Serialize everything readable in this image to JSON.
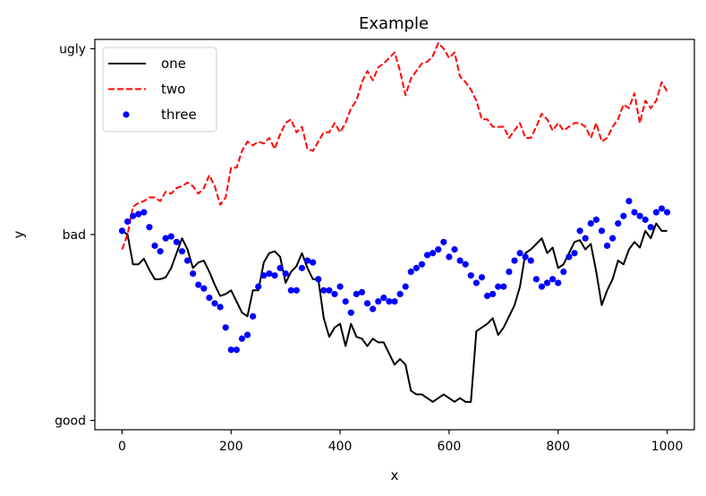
{
  "chart_data": {
    "type": "line",
    "title": "Example",
    "xlabel": "x",
    "ylabel": "y",
    "xlim": [
      -50,
      1050
    ],
    "ylim": [
      -0.05,
      2.05
    ],
    "x_ticks": [
      0,
      200,
      400,
      600,
      800,
      1000
    ],
    "y_categories": [
      "good",
      "bad",
      "ugly"
    ],
    "grid": false,
    "legend_position": "top-left",
    "series": [
      {
        "name": "one",
        "color": "#000000",
        "style": "solid",
        "x": [
          0,
          10,
          20,
          30,
          40,
          50,
          60,
          70,
          80,
          90,
          100,
          110,
          120,
          130,
          140,
          150,
          160,
          170,
          180,
          190,
          200,
          210,
          220,
          230,
          240,
          250,
          260,
          270,
          280,
          290,
          300,
          310,
          320,
          330,
          340,
          350,
          360,
          370,
          380,
          390,
          400,
          410,
          420,
          430,
          440,
          450,
          460,
          470,
          480,
          490,
          500,
          510,
          520,
          530,
          540,
          550,
          560,
          570,
          580,
          590,
          600,
          610,
          620,
          630,
          640,
          650,
          660,
          670,
          680,
          690,
          700,
          710,
          720,
          730,
          740,
          750,
          760,
          770,
          780,
          790,
          800,
          810,
          820,
          830,
          840,
          850,
          860,
          870,
          880,
          890,
          900,
          910,
          920,
          930,
          940,
          950,
          960,
          970,
          980,
          990,
          1000
        ],
        "y": [
          1.02,
          1.0,
          0.84,
          0.84,
          0.87,
          0.81,
          0.76,
          0.76,
          0.77,
          0.82,
          0.9,
          0.98,
          0.92,
          0.82,
          0.85,
          0.86,
          0.8,
          0.73,
          0.67,
          0.68,
          0.7,
          0.64,
          0.58,
          0.56,
          0.7,
          0.7,
          0.85,
          0.9,
          0.91,
          0.88,
          0.74,
          0.8,
          0.83,
          0.9,
          0.82,
          0.76,
          0.76,
          0.55,
          0.45,
          0.5,
          0.52,
          0.4,
          0.52,
          0.45,
          0.44,
          0.4,
          0.44,
          0.42,
          0.42,
          0.36,
          0.3,
          0.33,
          0.3,
          0.16,
          0.14,
          0.14,
          0.12,
          0.1,
          0.12,
          0.14,
          0.12,
          0.1,
          0.12,
          0.1,
          0.1,
          0.48,
          0.5,
          0.52,
          0.55,
          0.46,
          0.5,
          0.56,
          0.62,
          0.72,
          0.9,
          0.92,
          0.95,
          0.98,
          0.9,
          0.93,
          0.82,
          0.84,
          0.9,
          0.96,
          0.97,
          0.92,
          0.95,
          0.8,
          0.62,
          0.7,
          0.76,
          0.86,
          0.84,
          0.92,
          0.96,
          0.93,
          1.02,
          0.98,
          1.06,
          1.02,
          1.02
        ]
      },
      {
        "name": "two",
        "color": "#ff0000",
        "style": "dashed",
        "x": [
          0,
          10,
          20,
          30,
          40,
          50,
          60,
          70,
          80,
          90,
          100,
          110,
          120,
          130,
          140,
          150,
          160,
          170,
          180,
          190,
          200,
          210,
          220,
          230,
          240,
          250,
          260,
          270,
          280,
          290,
          300,
          310,
          320,
          330,
          340,
          350,
          360,
          370,
          380,
          390,
          400,
          410,
          420,
          430,
          440,
          450,
          460,
          470,
          480,
          490,
          500,
          510,
          520,
          530,
          540,
          550,
          560,
          570,
          580,
          590,
          600,
          610,
          620,
          630,
          640,
          650,
          660,
          670,
          680,
          690,
          700,
          710,
          720,
          730,
          740,
          750,
          760,
          770,
          780,
          790,
          800,
          810,
          820,
          830,
          840,
          850,
          860,
          870,
          880,
          890,
          900,
          910,
          920,
          930,
          940,
          950,
          960,
          970,
          980,
          990,
          1000
        ],
        "y": [
          0.92,
          1.0,
          1.15,
          1.17,
          1.18,
          1.2,
          1.2,
          1.18,
          1.23,
          1.22,
          1.25,
          1.26,
          1.28,
          1.26,
          1.22,
          1.25,
          1.32,
          1.26,
          1.16,
          1.2,
          1.36,
          1.36,
          1.45,
          1.5,
          1.48,
          1.5,
          1.49,
          1.52,
          1.46,
          1.54,
          1.6,
          1.62,
          1.55,
          1.58,
          1.46,
          1.45,
          1.5,
          1.55,
          1.55,
          1.6,
          1.55,
          1.6,
          1.68,
          1.72,
          1.82,
          1.88,
          1.83,
          1.9,
          1.92,
          1.95,
          1.98,
          1.88,
          1.75,
          1.84,
          1.88,
          1.92,
          1.93,
          1.96,
          2.03,
          2.0,
          1.95,
          1.98,
          1.85,
          1.82,
          1.78,
          1.72,
          1.62,
          1.62,
          1.58,
          1.58,
          1.58,
          1.52,
          1.56,
          1.6,
          1.52,
          1.52,
          1.58,
          1.65,
          1.62,
          1.56,
          1.6,
          1.56,
          1.58,
          1.6,
          1.6,
          1.58,
          1.52,
          1.6,
          1.5,
          1.52,
          1.58,
          1.62,
          1.7,
          1.68,
          1.76,
          1.6,
          1.72,
          1.68,
          1.72,
          1.82,
          1.77
        ]
      },
      {
        "name": "three",
        "color": "#0000ff",
        "style": "dots",
        "x": [
          0,
          10,
          20,
          30,
          40,
          50,
          60,
          70,
          80,
          90,
          100,
          110,
          120,
          130,
          140,
          150,
          160,
          170,
          180,
          190,
          200,
          210,
          220,
          230,
          240,
          250,
          260,
          270,
          280,
          290,
          300,
          310,
          320,
          330,
          340,
          350,
          360,
          370,
          380,
          390,
          400,
          410,
          420,
          430,
          440,
          450,
          460,
          470,
          480,
          490,
          500,
          510,
          520,
          530,
          540,
          550,
          560,
          570,
          580,
          590,
          600,
          610,
          620,
          630,
          640,
          650,
          660,
          670,
          680,
          690,
          700,
          710,
          720,
          730,
          740,
          750,
          760,
          770,
          780,
          790,
          800,
          810,
          820,
          830,
          840,
          850,
          860,
          870,
          880,
          890,
          900,
          910,
          920,
          930,
          940,
          950,
          960,
          970,
          980,
          990,
          1000
        ],
        "y": [
          1.02,
          1.07,
          1.1,
          1.11,
          1.12,
          1.04,
          0.94,
          0.91,
          0.98,
          0.99,
          0.96,
          0.91,
          0.86,
          0.79,
          0.73,
          0.71,
          0.66,
          0.63,
          0.61,
          0.5,
          0.38,
          0.38,
          0.44,
          0.46,
          0.56,
          0.72,
          0.78,
          0.79,
          0.78,
          0.82,
          0.79,
          0.7,
          0.7,
          0.82,
          0.86,
          0.85,
          0.76,
          0.7,
          0.7,
          0.68,
          0.72,
          0.64,
          0.58,
          0.68,
          0.69,
          0.63,
          0.6,
          0.64,
          0.66,
          0.64,
          0.64,
          0.68,
          0.72,
          0.8,
          0.82,
          0.84,
          0.89,
          0.9,
          0.92,
          0.96,
          0.88,
          0.92,
          0.86,
          0.84,
          0.78,
          0.74,
          0.77,
          0.67,
          0.68,
          0.72,
          0.72,
          0.8,
          0.86,
          0.9,
          0.88,
          0.86,
          0.76,
          0.72,
          0.74,
          0.76,
          0.74,
          0.8,
          0.88,
          0.9,
          1.02,
          0.98,
          1.06,
          1.08,
          1.02,
          0.94,
          0.98,
          1.06,
          1.1,
          1.18,
          1.12,
          1.1,
          1.08,
          1.04,
          1.12,
          1.14,
          1.12
        ]
      }
    ]
  }
}
